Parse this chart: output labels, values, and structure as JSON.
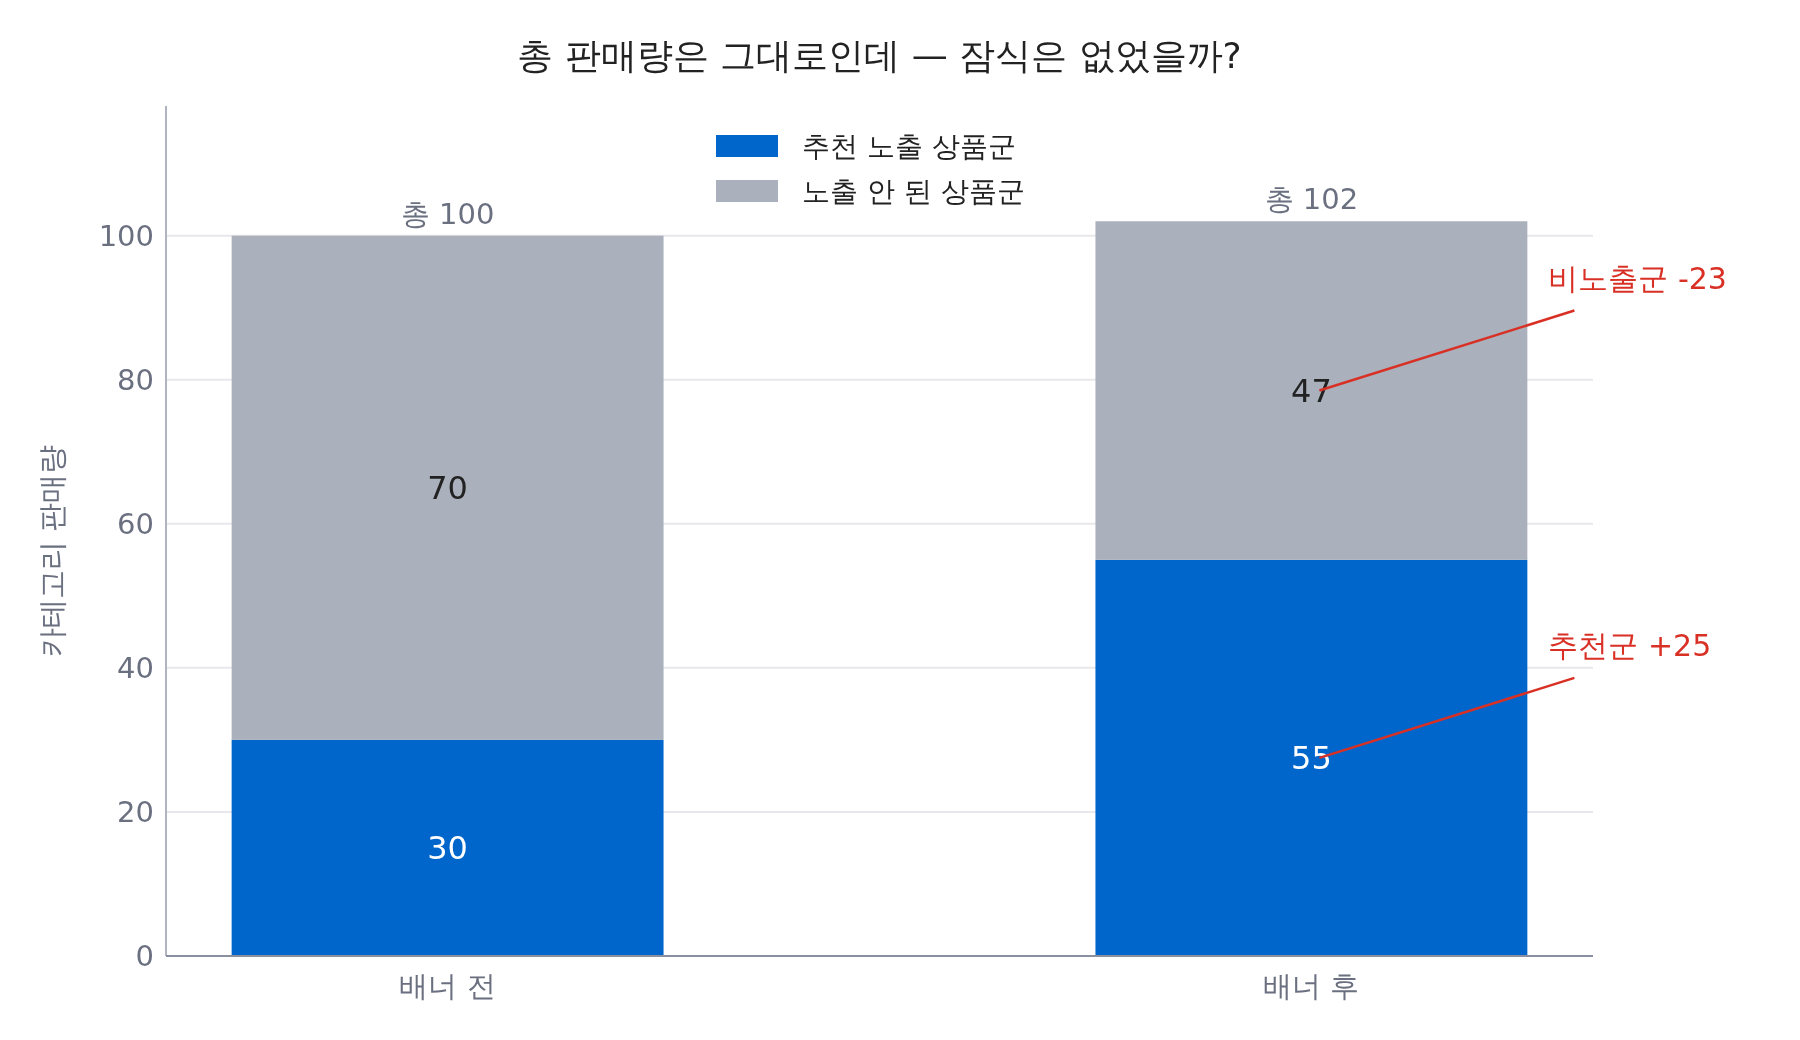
{
  "chart_data": {
    "type": "bar",
    "title": "총 판매량은 그대로인데 — 잠식은 없었을까?",
    "ylabel": "카테고리 판매량",
    "categories": [
      "배너 전",
      "배너 후"
    ],
    "series": [
      {
        "name": "추천 노출 상품군",
        "color": "#0066cc",
        "values": [
          30,
          55
        ]
      },
      {
        "name": "노출 안 된 상품군",
        "color": "#aab1bc",
        "values": [
          70,
          47
        ]
      }
    ],
    "stacked": true,
    "data_labels": true,
    "totals": [
      "총 100",
      "총 102"
    ],
    "ylim": [
      0,
      118
    ],
    "yticks": [
      0,
      20,
      40,
      60,
      80,
      100
    ],
    "grid": "y",
    "legend": "top",
    "annotations": [
      "비노출군 -23",
      "추천군 +25"
    ]
  }
}
